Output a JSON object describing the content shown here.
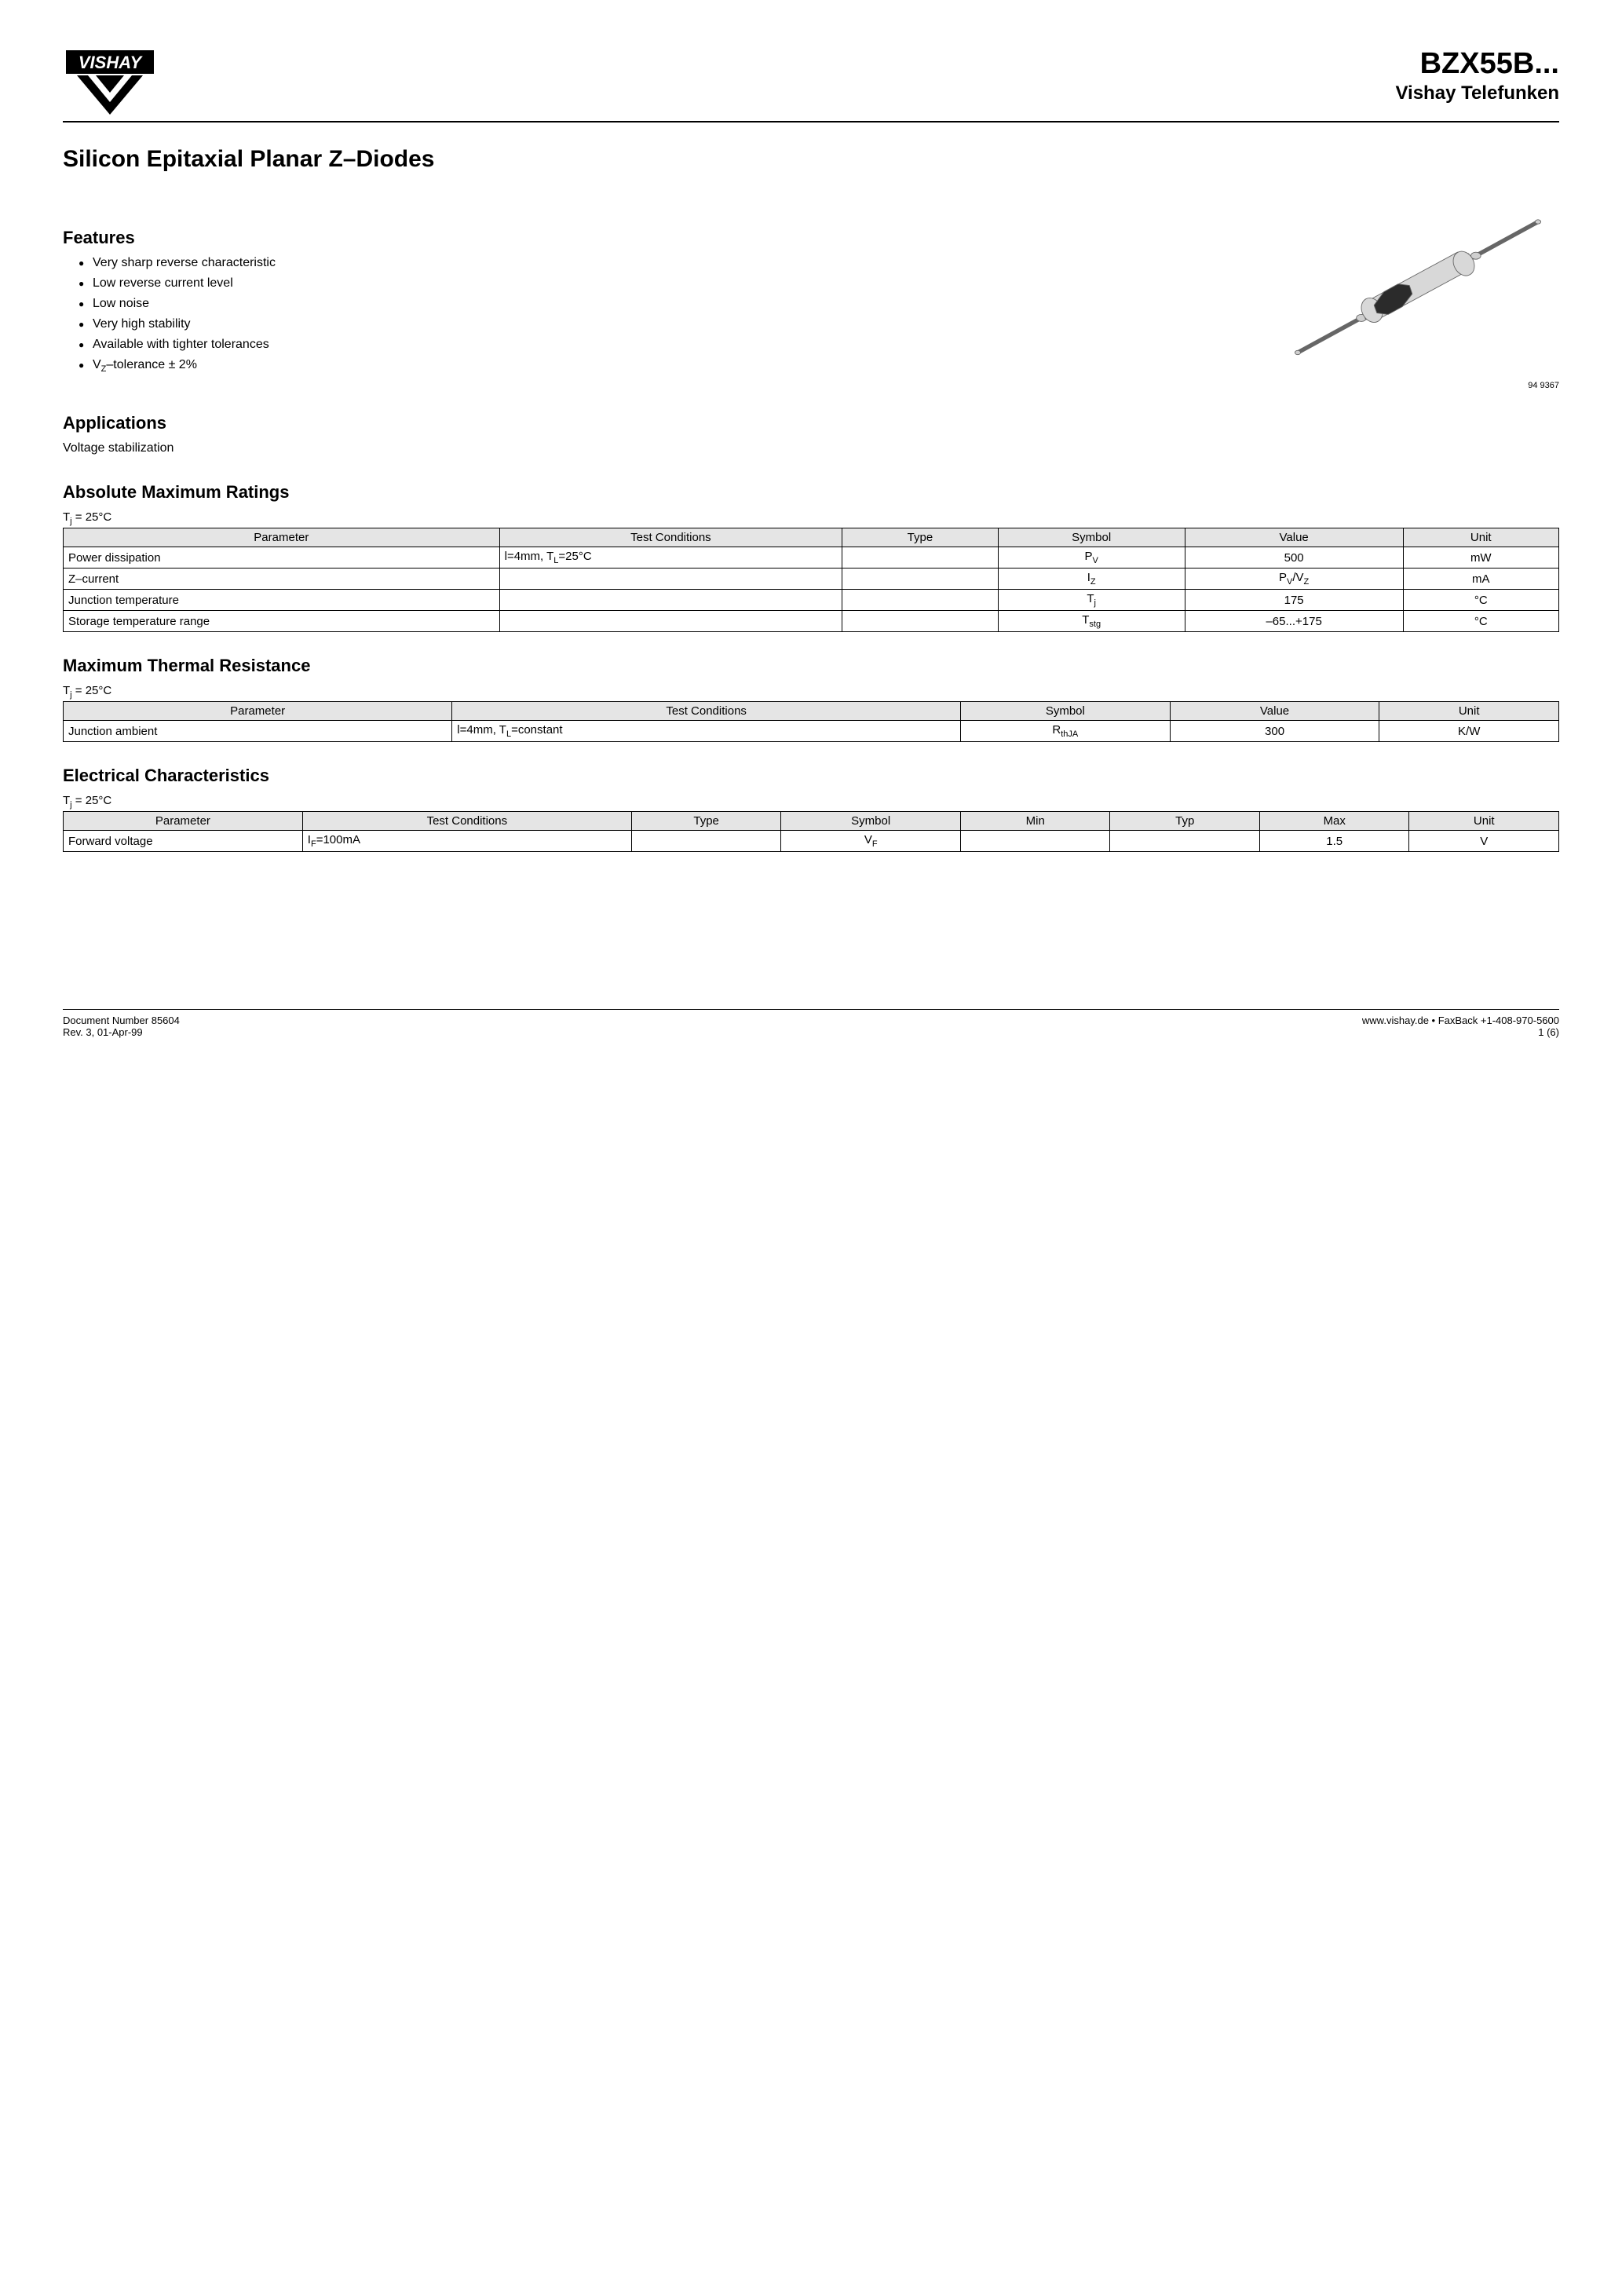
{
  "header": {
    "logo_text": "VISHAY",
    "part_number": "BZX55B...",
    "brand": "Vishay Telefunken"
  },
  "main_title": "Silicon Epitaxial Planar Z–Diodes",
  "features": {
    "heading": "Features",
    "items": [
      "Very sharp reverse characteristic",
      "Low reverse current level",
      "Low noise",
      "Very high stability",
      "Available with tighter tolerances",
      "V_Z–tolerance ± 2%"
    ]
  },
  "applications": {
    "heading": "Applications",
    "text": "Voltage stabilization"
  },
  "figure_label": "94 9367",
  "amr": {
    "heading": "Absolute Maximum Ratings",
    "condition": "T_j = 25°C",
    "columns": [
      "Parameter",
      "Test Conditions",
      "Type",
      "Symbol",
      "Value",
      "Unit"
    ],
    "col_widths": [
      "28%",
      "22%",
      "10%",
      "12%",
      "14%",
      "10%"
    ],
    "rows": [
      [
        "Power dissipation",
        "l=4mm, T_L=25°C",
        "",
        "P_V",
        "500",
        "mW"
      ],
      [
        "Z–current",
        "",
        "",
        "I_Z",
        "P_V/V_Z",
        "mA"
      ],
      [
        "Junction temperature",
        "",
        "",
        "T_j",
        "175",
        "°C"
      ],
      [
        "Storage temperature range",
        "",
        "",
        "T_stg",
        "–65...+175",
        "°C"
      ]
    ]
  },
  "mtr": {
    "heading": "Maximum Thermal Resistance",
    "condition": "T_j = 25°C",
    "columns": [
      "Parameter",
      "Test Conditions",
      "Symbol",
      "Value",
      "Unit"
    ],
    "col_widths": [
      "26%",
      "34%",
      "14%",
      "14%",
      "12%"
    ],
    "rows": [
      [
        "Junction ambient",
        "l=4mm, T_L=constant",
        "R_thJA",
        "300",
        "K/W"
      ]
    ]
  },
  "ec": {
    "heading": "Electrical Characteristics",
    "condition": "T_j = 25°C",
    "columns": [
      "Parameter",
      "Test Conditions",
      "Type",
      "Symbol",
      "Min",
      "Typ",
      "Max",
      "Unit"
    ],
    "col_widths": [
      "16%",
      "22%",
      "10%",
      "12%",
      "10%",
      "10%",
      "10%",
      "10%"
    ],
    "rows": [
      [
        "Forward voltage",
        "I_F=100mA",
        "",
        "V_F",
        "",
        "",
        "1.5",
        "V"
      ]
    ]
  },
  "footer": {
    "doc_number": "Document Number 85604",
    "rev": "Rev. 3, 01-Apr-99",
    "url": "www.vishay.de • FaxBack +1-408-970-5600",
    "page": "1 (6)"
  },
  "diode_svg": {
    "body_color": "#d8d8d8",
    "band_color": "#2b2b2b",
    "lead_color": "#cfcfcf",
    "stroke": "#666666"
  }
}
